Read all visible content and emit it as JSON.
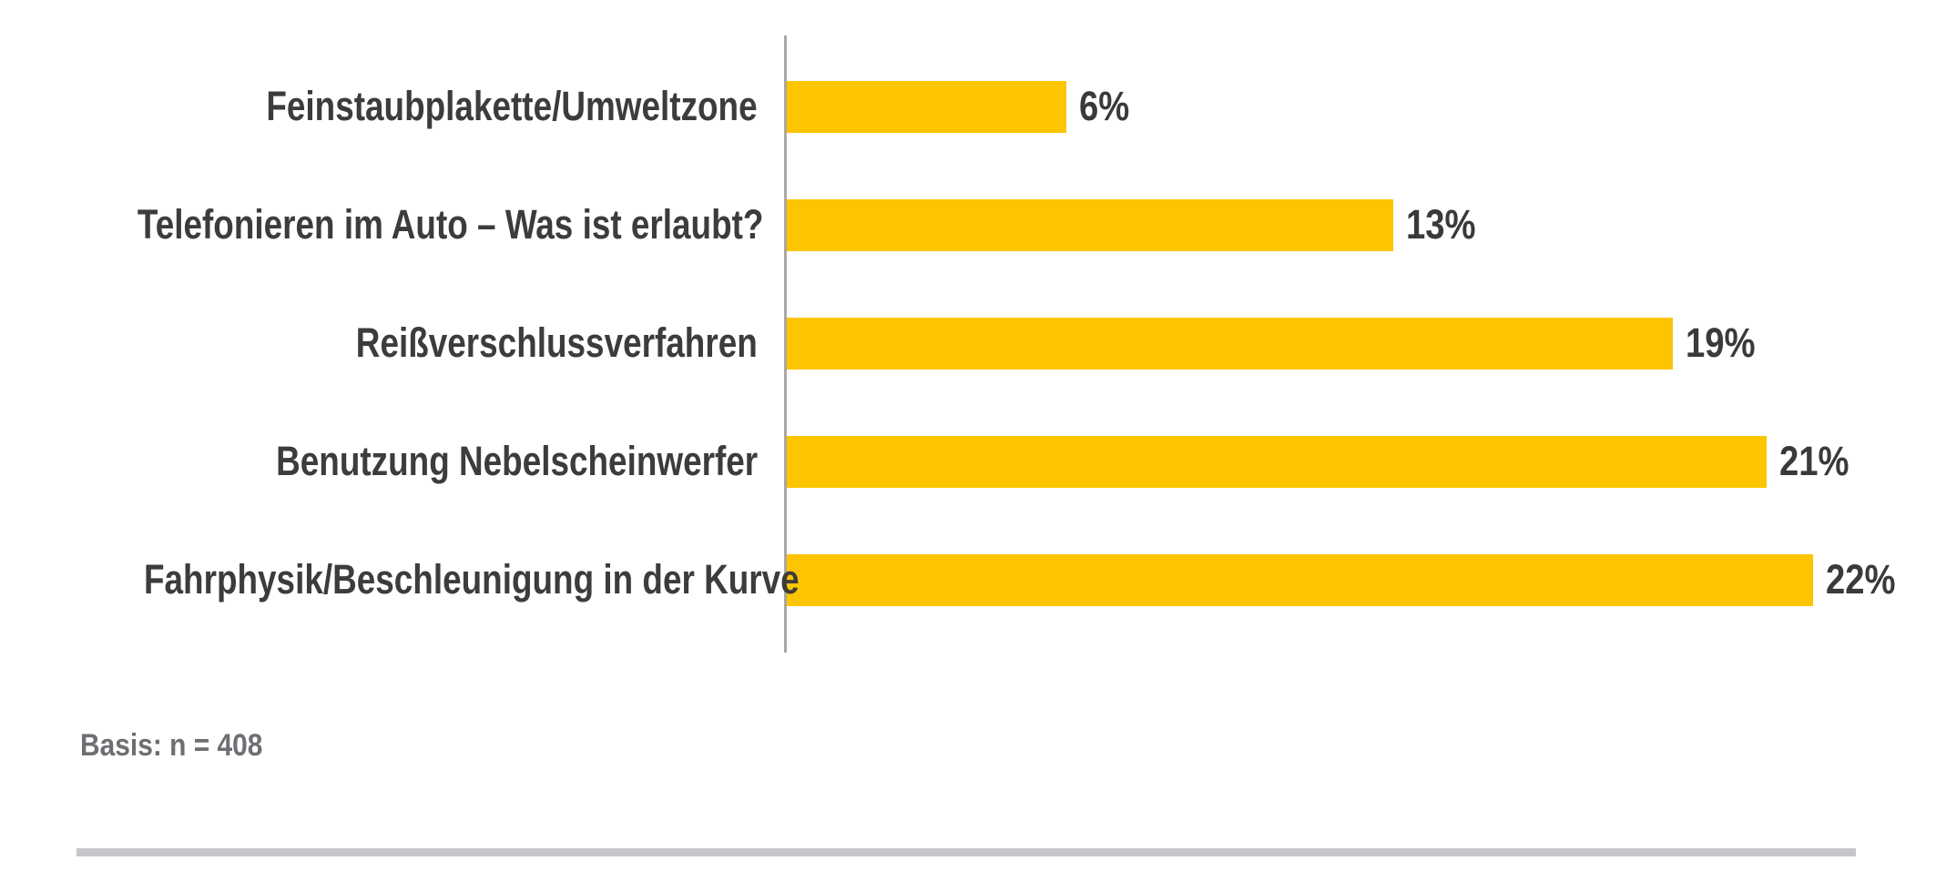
{
  "chart_data": {
    "type": "bar",
    "orientation": "horizontal",
    "categories": [
      "Feinstaubplakette/Umweltzone",
      "Telefonieren im Auto – Was ist erlaubt?",
      "Reißverschlussverfahren",
      "Benutzung Nebelscheinwerfer",
      "Fahrphysik/Beschleunigung in der Kurve"
    ],
    "values": [
      6,
      13,
      19,
      21,
      22
    ],
    "value_labels": [
      "6%",
      "13%",
      "19%",
      "21%",
      "22%"
    ],
    "xlim": [
      0,
      22
    ],
    "grid": "off",
    "legend": "none",
    "value_label_position": "right-of-bar",
    "bar_color": "#FCC500",
    "axis_color": "#ADA7A1",
    "label_color": "#3C3C3B",
    "value_color": "#3A3A39"
  },
  "footer": {
    "basis_label": "Basis: n = 408",
    "basis_color": "#6E6E73",
    "rule_color": "#C7C7CB"
  }
}
